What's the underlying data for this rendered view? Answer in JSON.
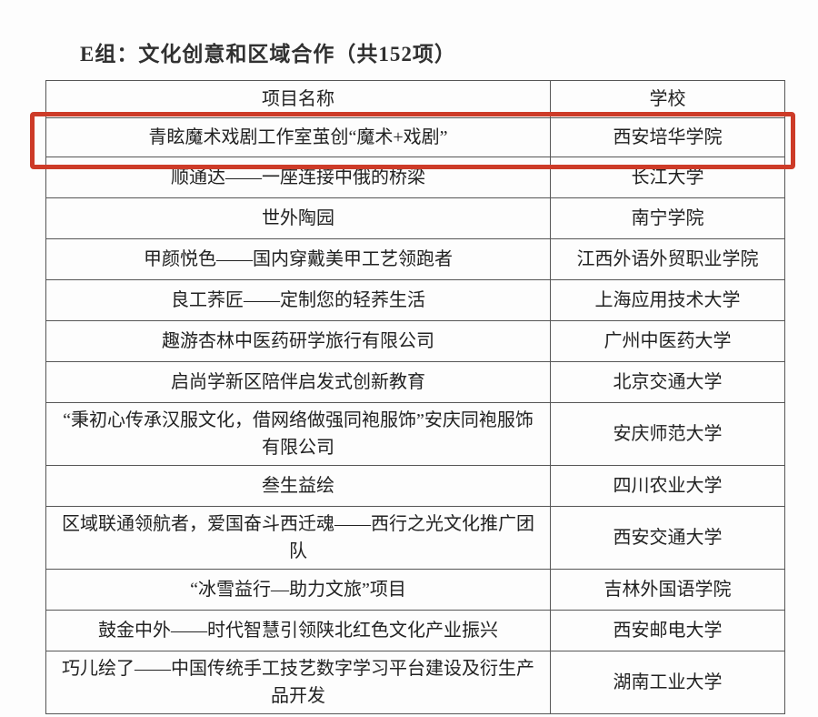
{
  "page": {
    "title": "E组：文化创意和区域合作（共152项）"
  },
  "table": {
    "headers": [
      "项目名称",
      "学校"
    ],
    "highlight_color": "#cd3b28",
    "rows": [
      {
        "project": "青眩魔术戏剧工作室茧创“魔术+戏剧”",
        "school": "西安培华学院",
        "highlighted": true
      },
      {
        "project": "顺通达——一座连接中俄的桥梁",
        "school": "长江大学",
        "highlighted": false
      },
      {
        "project": "世外陶园",
        "school": "南宁学院",
        "highlighted": false
      },
      {
        "project": "甲颜悦色——国内穿戴美甲工艺领跑者",
        "school": "江西外语外贸职业学院",
        "highlighted": false
      },
      {
        "project": "良工荞匠——定制您的轻荞生活",
        "school": "上海应用技术大学",
        "highlighted": false
      },
      {
        "project": "趣游杏林中医药研学旅行有限公司",
        "school": "广州中医药大学",
        "highlighted": false
      },
      {
        "project": "启尚学新区陪伴启发式创新教育",
        "school": "北京交通大学",
        "highlighted": false
      },
      {
        "project": "“秉初心传承汉服文化，借网络做强同袍服饰”安庆同袍服饰有限公司",
        "school": "安庆师范大学",
        "highlighted": false
      },
      {
        "project": "叁生益绘",
        "school": "四川农业大学",
        "highlighted": false
      },
      {
        "project": "区域联通领航者，爱国奋斗西迁魂——西行之光文化推广团队",
        "school": "西安交通大学",
        "highlighted": false
      },
      {
        "project": "“冰雪益行—助力文旅”项目",
        "school": "吉林外国语学院",
        "highlighted": false
      },
      {
        "project": "鼓金中外——时代智慧引领陕北红色文化产业振兴",
        "school": "西安邮电大学",
        "highlighted": false
      },
      {
        "project": "巧儿绘了——中国传统手工技艺数字学习平台建设及衍生产品开发",
        "school": "湖南工业大学",
        "highlighted": false
      }
    ]
  }
}
